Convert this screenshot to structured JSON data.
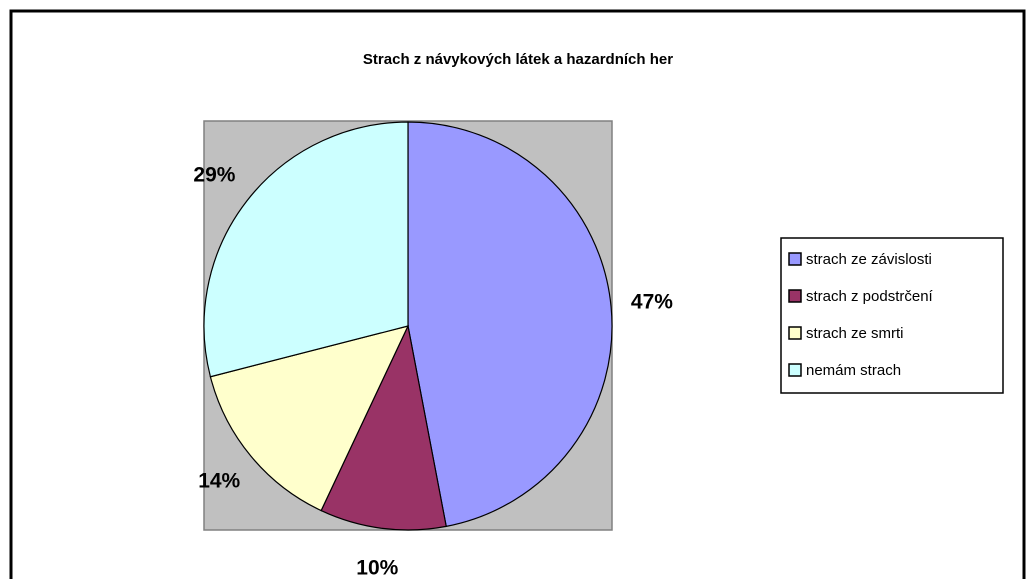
{
  "chart_data": {
    "type": "pie",
    "title": "Strach z návykových látek a hazardních her",
    "categories": [
      "strach ze závislosti",
      "strach z podstrčení",
      "strach ze smrti",
      "nemám strach"
    ],
    "values": [
      47,
      10,
      14,
      29
    ],
    "value_labels": [
      "47%",
      "10%",
      "14%",
      "29%"
    ],
    "colors": [
      "#9999ff",
      "#993366",
      "#ffffcc",
      "#ccffff"
    ],
    "legend": "right"
  }
}
